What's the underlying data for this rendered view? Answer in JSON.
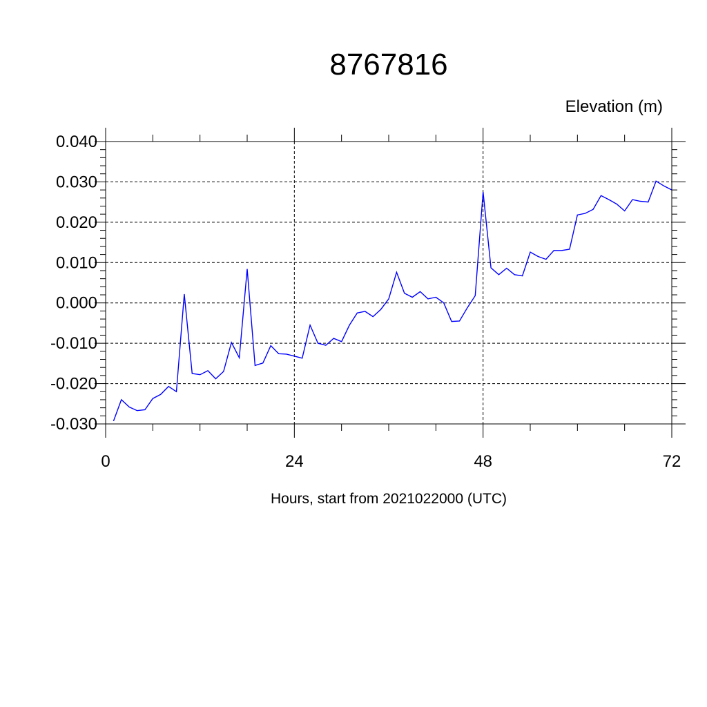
{
  "chart_data": {
    "type": "line",
    "title": "8767816",
    "units_label": "Elevation (m)",
    "xlabel": "Hours, start from 2021022000 (UTC)",
    "ylabel": "",
    "xlim": [
      0,
      72
    ],
    "ylim": [
      -0.03,
      0.04
    ],
    "x_ticks": [
      0,
      24,
      48,
      72
    ],
    "x_tick_labels": [
      "0",
      "24",
      "48",
      "72"
    ],
    "x_minor_step": 6,
    "y_ticks": [
      -0.03,
      -0.02,
      -0.01,
      0.0,
      0.01,
      0.02,
      0.03,
      0.04
    ],
    "y_tick_labels": [
      "-0.030",
      "-0.020",
      "-0.010",
      "0.000",
      "0.010",
      "0.020",
      "0.030",
      "0.040"
    ],
    "y_minor_step": 0.002,
    "grid": "dashed",
    "line_color": "#0000ff",
    "series": [
      {
        "x": [
          1,
          2,
          3,
          4,
          5,
          6,
          7,
          8,
          9,
          10,
          11,
          12,
          13,
          14,
          15,
          16,
          17,
          18,
          19,
          20,
          21,
          22,
          23,
          24,
          25,
          26,
          27,
          28,
          29,
          30,
          31,
          32,
          33,
          34,
          35,
          36,
          37,
          38,
          39,
          40,
          41,
          42,
          43,
          44,
          45,
          46,
          47,
          48,
          49,
          50,
          51,
          52,
          53,
          54,
          55,
          56,
          57,
          58,
          59,
          60,
          61,
          62,
          63,
          64,
          65,
          66,
          67,
          68,
          69,
          70,
          71,
          72
        ],
        "y": [
          -0.0293,
          -0.024,
          -0.0258,
          -0.0267,
          -0.0265,
          -0.0237,
          -0.0227,
          -0.0207,
          -0.022,
          0.0022,
          -0.0175,
          -0.0178,
          -0.0168,
          -0.0188,
          -0.017,
          -0.0098,
          -0.0136,
          0.0084,
          -0.0155,
          -0.0149,
          -0.0106,
          -0.0126,
          -0.0127,
          -0.0132,
          -0.0137,
          -0.0055,
          -0.01,
          -0.0105,
          -0.0088,
          -0.0096,
          -0.0055,
          -0.0025,
          -0.0021,
          -0.0034,
          -0.0016,
          0.001,
          0.0076,
          0.0024,
          0.0014,
          0.0028,
          0.001,
          0.0014,
          0.0,
          -0.0046,
          -0.0045,
          -0.0012,
          0.0018,
          0.0275,
          0.0087,
          0.007,
          0.0086,
          0.007,
          0.0067,
          0.0126,
          0.0115,
          0.0108,
          0.013,
          0.013,
          0.0133,
          0.0218,
          0.0222,
          0.0232,
          0.0266,
          0.0256,
          0.0245,
          0.0228,
          0.0256,
          0.0252,
          0.025,
          0.0302,
          0.029,
          0.028
        ]
      }
    ]
  }
}
